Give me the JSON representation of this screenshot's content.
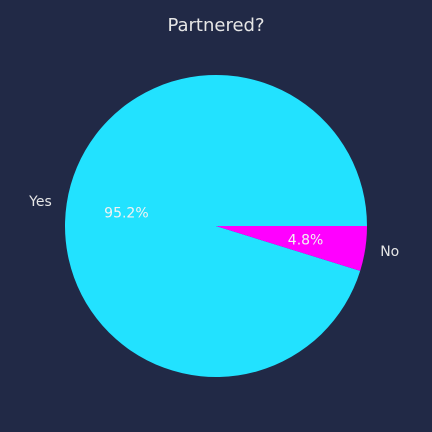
{
  "chart_data": {
    "type": "pie",
    "title": "Partnered?",
    "categories": [
      "Yes",
      "No"
    ],
    "values": [
      95.2,
      4.8
    ],
    "percent_labels": [
      "95.2%",
      "4.8%"
    ],
    "colors": [
      "#22e2ff",
      "#ff00ff"
    ],
    "start_angle_deg": 0,
    "direction": "counterclockwise"
  }
}
